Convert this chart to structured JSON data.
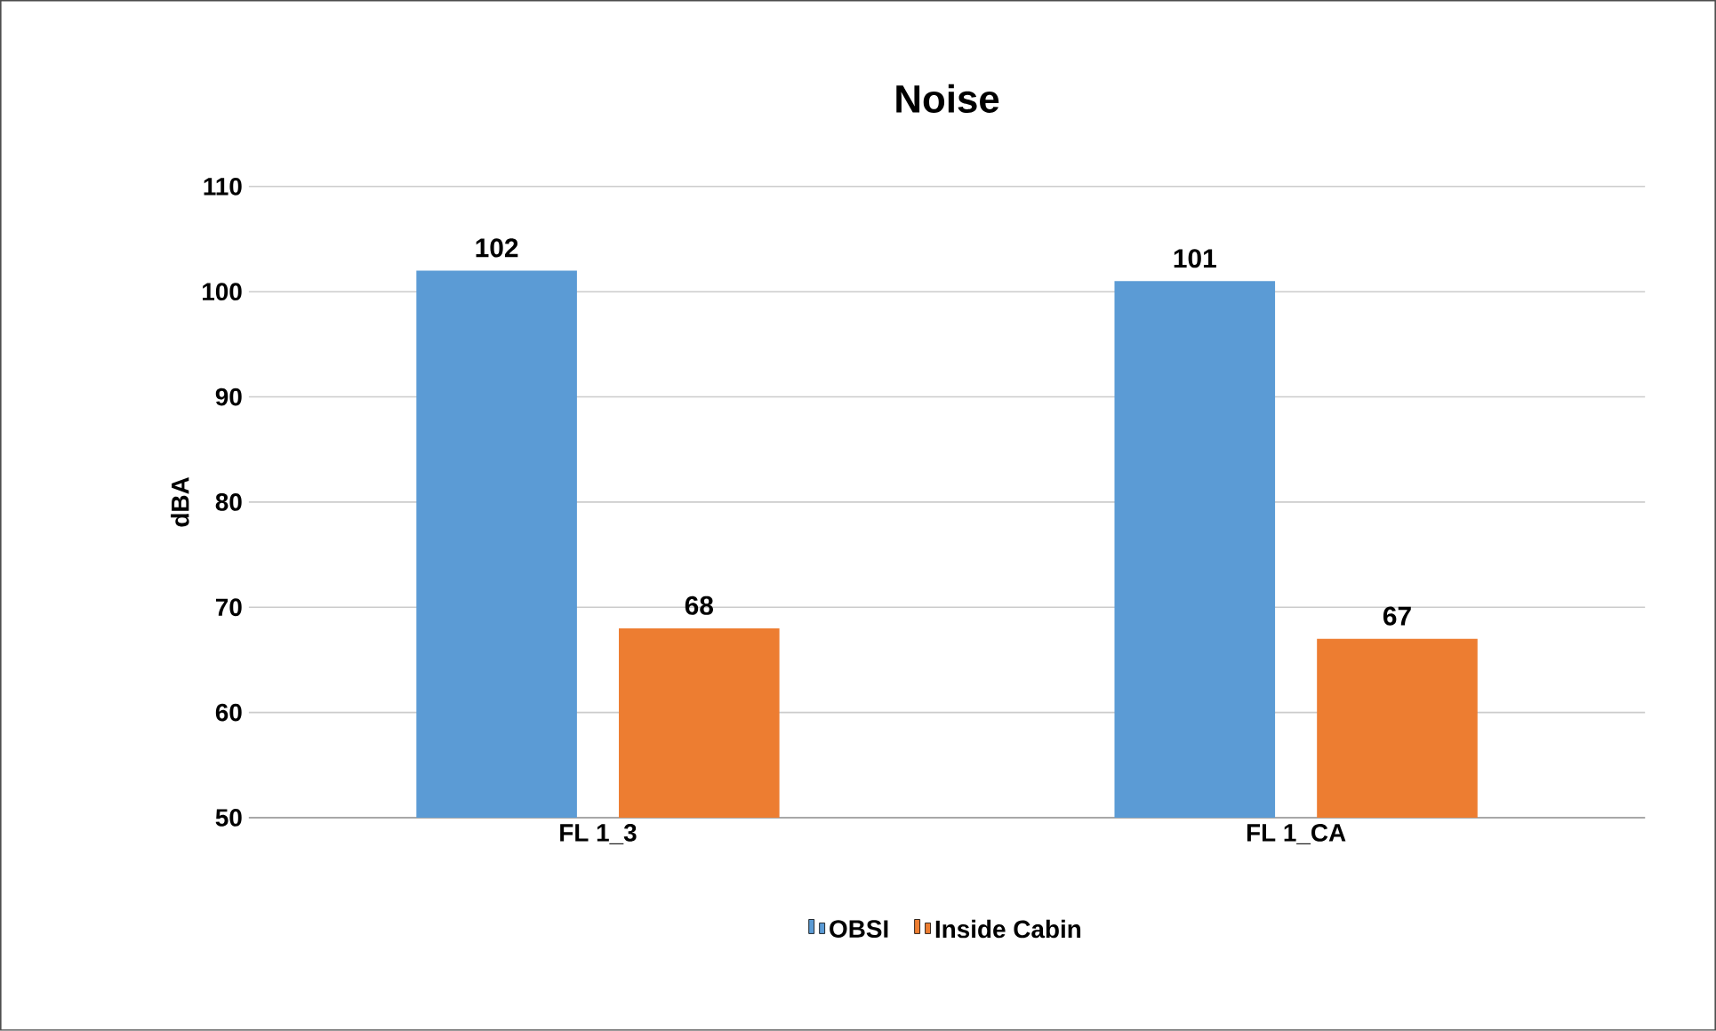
{
  "chart_data": {
    "type": "bar",
    "title": "Noise",
    "ylabel": "dBA",
    "categories": [
      "FL 1_3",
      "FL 1_CA"
    ],
    "series": [
      {
        "name": "OBSI",
        "color": "#5b9bd5",
        "values": [
          102,
          101
        ]
      },
      {
        "name": "Inside Cabin",
        "color": "#ed7d31",
        "values": [
          68,
          67
        ]
      }
    ],
    "ylim": [
      50,
      110
    ],
    "yticks": [
      50,
      60,
      70,
      80,
      90,
      100,
      110
    ],
    "grid": "y",
    "legend": "bottom",
    "data_labels": true
  }
}
